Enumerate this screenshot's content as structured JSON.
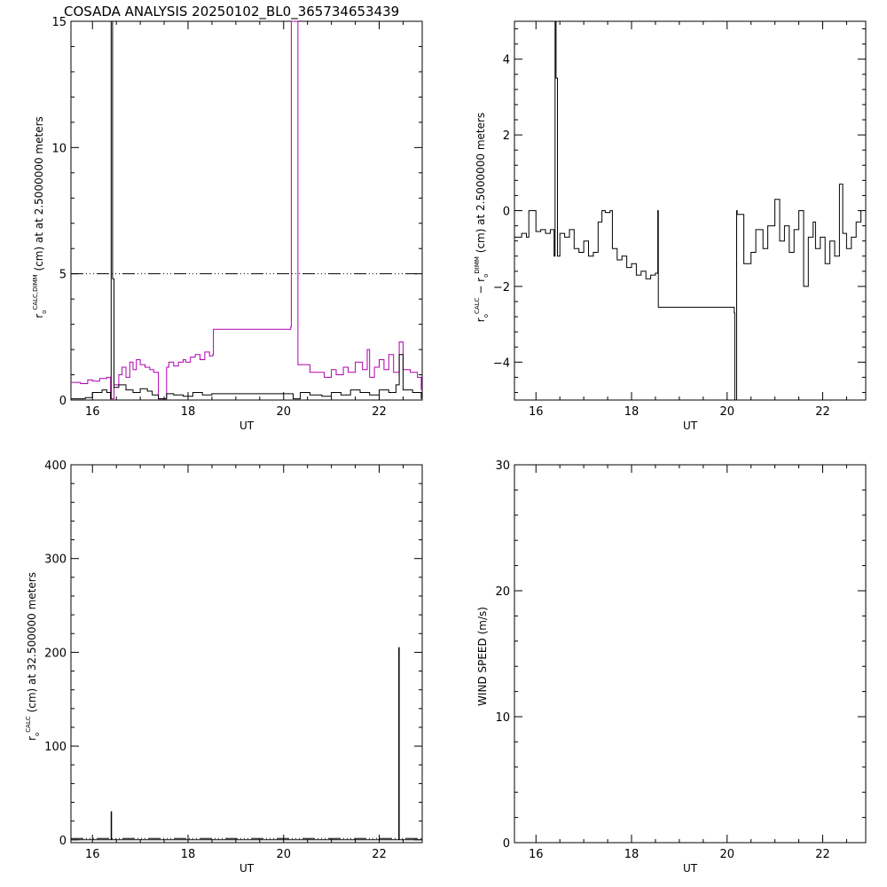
{
  "page": {
    "title": "COSADA ANALYSIS 20250102_BL0_365734653439"
  },
  "chart_data": [
    {
      "id": "panel-ro-calc-dimm",
      "type": "line",
      "xlabel": "UT",
      "ylabel": {
        "symbol": "r",
        "sub": "o",
        "sup": "CALC,DIMM",
        "rest": " (cm)  at  at 2.5000000 meters"
      },
      "xlim": [
        15.55,
        22.9
      ],
      "ylim": [
        0,
        15
      ],
      "xticks": [
        16,
        18,
        20,
        22
      ],
      "xtick_labels": [
        "16",
        "18",
        "20",
        "22"
      ],
      "yticks": [
        0,
        5,
        10,
        15
      ],
      "ytick_labels": [
        "0",
        "5",
        "10",
        "15"
      ],
      "grid": false,
      "reference_line": {
        "y": 5,
        "style": "dash-dot-dot"
      },
      "series": [
        {
          "color": "#b000b0",
          "x": [
            15.55,
            15.75,
            15.9,
            16.0,
            16.15,
            16.3,
            16.38,
            16.45,
            16.55,
            16.62,
            16.7,
            16.78,
            16.85,
            16.92,
            17.0,
            17.1,
            17.2,
            17.28,
            17.38,
            17.55,
            17.6,
            17.7,
            17.8,
            17.9,
            17.95,
            18.05,
            18.15,
            18.25,
            18.35,
            18.45,
            18.52,
            18.53,
            20.15,
            20.16,
            20.3,
            20.55,
            20.85,
            21.0,
            21.1,
            21.25,
            21.35,
            21.5,
            21.65,
            21.75,
            21.8,
            21.9,
            22.0,
            22.1,
            22.2,
            22.3,
            22.42,
            22.5,
            22.65,
            22.8,
            22.88
          ],
          "y": [
            0.7,
            0.65,
            0.8,
            0.75,
            0.85,
            0.9,
            0.05,
            0.6,
            1.0,
            1.3,
            0.9,
            1.5,
            1.2,
            1.6,
            1.4,
            1.3,
            1.2,
            1.1,
            0.05,
            1.3,
            1.5,
            1.35,
            1.5,
            1.6,
            1.5,
            1.7,
            1.8,
            1.6,
            1.9,
            1.75,
            1.8,
            2.8,
            2.9,
            15,
            1.4,
            1.1,
            0.9,
            1.2,
            1.0,
            1.3,
            1.1,
            1.5,
            1.2,
            2.0,
            0.9,
            1.3,
            1.6,
            1.2,
            1.8,
            1.1,
            2.3,
            1.2,
            1.1,
            0.9,
            0.4
          ]
        },
        {
          "color": "#000000",
          "x": [
            15.55,
            15.85,
            16.0,
            16.2,
            16.3,
            16.38,
            16.39,
            16.42,
            16.45,
            16.55,
            16.7,
            16.85,
            17.0,
            17.15,
            17.25,
            17.38,
            17.55,
            17.7,
            17.9,
            18.1,
            18.3,
            18.5,
            18.55,
            20.2,
            20.35,
            20.55,
            20.8,
            21.0,
            21.2,
            21.4,
            21.6,
            21.8,
            22.0,
            22.2,
            22.35,
            22.42,
            22.5,
            22.7,
            22.88
          ],
          "y": [
            0.05,
            0.1,
            0.3,
            0.4,
            0.3,
            0.05,
            15,
            4.8,
            0.5,
            0.6,
            0.4,
            0.3,
            0.45,
            0.35,
            0.2,
            0.05,
            0.25,
            0.2,
            0.15,
            0.3,
            0.2,
            0.25,
            0.25,
            0.05,
            0.3,
            0.2,
            0.15,
            0.3,
            0.2,
            0.4,
            0.3,
            0.2,
            0.4,
            0.3,
            0.6,
            1.8,
            0.4,
            0.3,
            0.05
          ]
        }
      ]
    },
    {
      "id": "panel-ro-diff",
      "type": "line",
      "xlabel": "UT",
      "ylabel": {
        "symbol": "r",
        "sub": "o",
        "sup": "CALC",
        "mid": "  −  r",
        "sub2": "o",
        "sup2": "DIMM",
        "rest": " (cm)  at 2.5000000 meters"
      },
      "xlim": [
        15.55,
        22.9
      ],
      "ylim": [
        -5,
        5
      ],
      "xticks": [
        16,
        18,
        20,
        22
      ],
      "xtick_labels": [
        "16",
        "18",
        "20",
        "22"
      ],
      "yticks": [
        -4,
        -2,
        0,
        2,
        4
      ],
      "ytick_labels": [
        "−4",
        "−2",
        "0",
        "2",
        "4"
      ],
      "grid": false,
      "series": [
        {
          "color": "#000000",
          "x": [
            15.55,
            15.7,
            15.8,
            15.85,
            16.0,
            16.1,
            16.2,
            16.3,
            16.38,
            16.4,
            16.42,
            16.45,
            16.5,
            16.6,
            16.7,
            16.8,
            16.9,
            17.0,
            17.1,
            17.2,
            17.3,
            17.38,
            17.45,
            17.55,
            17.6,
            17.7,
            17.8,
            17.9,
            18.0,
            18.1,
            18.2,
            18.3,
            18.4,
            18.5,
            18.55,
            18.56,
            20.15,
            20.16,
            20.2,
            20.21,
            20.35,
            20.5,
            20.6,
            20.75,
            20.85,
            21.0,
            21.1,
            21.2,
            21.3,
            21.4,
            21.5,
            21.6,
            21.7,
            21.8,
            21.85,
            21.95,
            22.05,
            22.15,
            22.25,
            22.35,
            22.42,
            22.5,
            22.6,
            22.7,
            22.8,
            22.88
          ],
          "y": [
            -0.7,
            -0.6,
            -0.7,
            0.0,
            -0.55,
            -0.5,
            -0.6,
            -0.5,
            -1.2,
            5.0,
            3.5,
            -1.2,
            -0.6,
            -0.7,
            -0.5,
            -1.0,
            -1.1,
            -0.8,
            -1.2,
            -1.1,
            -0.3,
            0.0,
            -0.05,
            0.0,
            -1.0,
            -1.3,
            -1.2,
            -1.5,
            -1.4,
            -1.7,
            -1.6,
            -1.8,
            -1.7,
            -1.65,
            0.0,
            -2.55,
            -2.7,
            -5.0,
            0.0,
            -0.1,
            -1.4,
            -1.1,
            -0.5,
            -1.0,
            -0.4,
            0.3,
            -0.8,
            -0.4,
            -1.1,
            -0.5,
            0.0,
            -2.0,
            -0.7,
            -0.3,
            -1.0,
            -0.7,
            -1.4,
            -0.8,
            -1.2,
            0.7,
            -0.6,
            -1.0,
            -0.7,
            -0.3,
            0.0,
            0.0
          ]
        }
      ]
    },
    {
      "id": "panel-ro-calc-high",
      "type": "line",
      "xlabel": "UT",
      "ylabel": {
        "symbol": "r",
        "sub": "o",
        "sup": "CALC",
        "rest": " (cm)  at 32.500000 meters"
      },
      "xlim": [
        15.55,
        22.9
      ],
      "ylim": [
        -3,
        400
      ],
      "xticks": [
        16,
        18,
        20,
        22
      ],
      "xtick_labels": [
        "16",
        "18",
        "20",
        "22"
      ],
      "yticks": [
        0,
        100,
        200,
        300,
        400
      ],
      "ytick_labels": [
        "0",
        "100",
        "200",
        "300",
        "400"
      ],
      "grid": false,
      "reference_line": {
        "y": 1.5,
        "style": "dash-dot-dot"
      },
      "series": [
        {
          "color": "#000000",
          "x": [
            15.55,
            16.38,
            16.39,
            16.4,
            16.42,
            17.0,
            18.0,
            19.0,
            20.0,
            21.0,
            22.0,
            22.4,
            22.41,
            22.42,
            22.9
          ],
          "y": [
            0,
            0,
            30,
            0,
            0,
            0,
            0,
            0,
            0,
            0,
            0,
            0,
            205,
            0,
            0
          ]
        }
      ]
    },
    {
      "id": "panel-wind-speed",
      "type": "line",
      "xlabel": "UT",
      "ylabel": {
        "rest": "WIND SPEED  (m/s)"
      },
      "xlim": [
        15.55,
        22.9
      ],
      "ylim": [
        0,
        30
      ],
      "xticks": [
        16,
        18,
        20,
        22
      ],
      "xtick_labels": [
        "16",
        "18",
        "20",
        "22"
      ],
      "yticks": [
        0,
        10,
        20,
        30
      ],
      "ytick_labels": [
        "0",
        "10",
        "20",
        "30"
      ],
      "grid": false,
      "series": []
    }
  ]
}
